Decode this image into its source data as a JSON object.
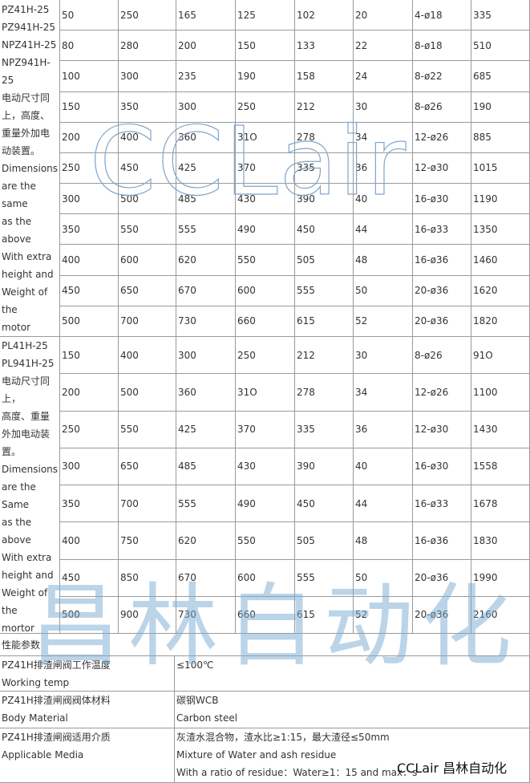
{
  "sections": [
    {
      "model_lines": [
        "PZ41H-25",
        "PZ941H-25",
        "NPZ41H-25",
        "NPZ941H-",
        "25",
        "电动尺寸同",
        "上，高度、",
        "重量外加电",
        "动装置。",
        "Dimensions",
        "are the",
        "same",
        "as the",
        "above",
        "With extra",
        "height and",
        "Weight of",
        "the",
        "motor"
      ],
      "rows": [
        [
          "50",
          "250",
          "165",
          "125",
          "102",
          "20",
          "4-ø18",
          "335"
        ],
        [
          "80",
          "280",
          "200",
          "150",
          "133",
          "22",
          "8-ø18",
          "510"
        ],
        [
          "100",
          "300",
          "235",
          "190",
          "158",
          "24",
          "8-ø22",
          "685"
        ],
        [
          "150",
          "350",
          "300",
          "250",
          "212",
          "30",
          "8-ø26",
          "190"
        ],
        [
          "200",
          "400",
          "360",
          "31O",
          "278",
          "34",
          "12-ø26",
          "885"
        ],
        [
          "250",
          "450",
          "425",
          "370",
          "335",
          "36",
          "12-ø30",
          "1015"
        ],
        [
          "300",
          "500",
          "485",
          "430",
          "390",
          "40",
          "16-ø30",
          "1190"
        ],
        [
          "350",
          "550",
          "555",
          "490",
          "450",
          "44",
          "16-ø33",
          "1350"
        ],
        [
          "400",
          "600",
          "620",
          "550",
          "505",
          "48",
          "16-ø36",
          "1460"
        ],
        [
          "450",
          "650",
          "670",
          "600",
          "555",
          "50",
          "20-ø36",
          "1620"
        ],
        [
          "500",
          "700",
          "730",
          "660",
          "615",
          "52",
          "20-ø36",
          "1820"
        ]
      ]
    },
    {
      "model_lines": [
        "PL41H-25",
        "PL941H-25",
        "电动尺寸同",
        "上，",
        "高度、重量",
        "外加电动装",
        "置。",
        "Dimensions",
        "are the",
        "Same",
        "as the",
        "above",
        "With extra",
        "height and",
        "Weight of",
        "the",
        "mortor"
      ],
      "rows": [
        [
          "150",
          "400",
          "300",
          "250",
          "212",
          "30",
          "8-ø26",
          "91O"
        ],
        [
          "200",
          "500",
          "360",
          "31O",
          "278",
          "34",
          "12-ø26",
          "1100"
        ],
        [
          "250",
          "550",
          "425",
          "370",
          "335",
          "36",
          "12-ø30",
          "1430"
        ],
        [
          "300",
          "650",
          "485",
          "430",
          "390",
          "40",
          "16-ø30",
          "1558"
        ],
        [
          "350",
          "700",
          "555",
          "490",
          "450",
          "44",
          "16-ø33",
          "1678"
        ],
        [
          "400",
          "750",
          "620",
          "550",
          "505",
          "48",
          "16-ø36",
          "1830"
        ],
        [
          "450",
          "850",
          "670",
          "600",
          "555",
          "50",
          "20-ø36",
          "1990"
        ],
        [
          "500",
          "900",
          "730",
          "660",
          "615",
          "52",
          "20-ø36",
          "2160"
        ]
      ]
    }
  ],
  "performance": {
    "title": "性能参数",
    "rows": [
      {
        "label": [
          "PZ41H排渣闸阀工作温度",
          "Working temp"
        ],
        "value": [
          "≤100℃"
        ]
      },
      {
        "label": [
          "PZ41H排渣闸阀阀体材料",
          "Body Material"
        ],
        "value": [
          "碳钢WCB",
          "Carbon steel"
        ]
      },
      {
        "label": [
          "PZ41H排渣闸阀适用介质",
          "Applicable Media"
        ],
        "value": [
          "灰渣水混合物，渣水比≥1:15，最大渣径≤50mm",
          "Mixture of Water and ash residue",
          "With a ratio of residue：Water≥1：15 and max．s"
        ]
      }
    ]
  },
  "watermarks": {
    "logo": "CCLair",
    "company": "昌林自动化",
    "footer": "CCLair 昌林自动化"
  }
}
